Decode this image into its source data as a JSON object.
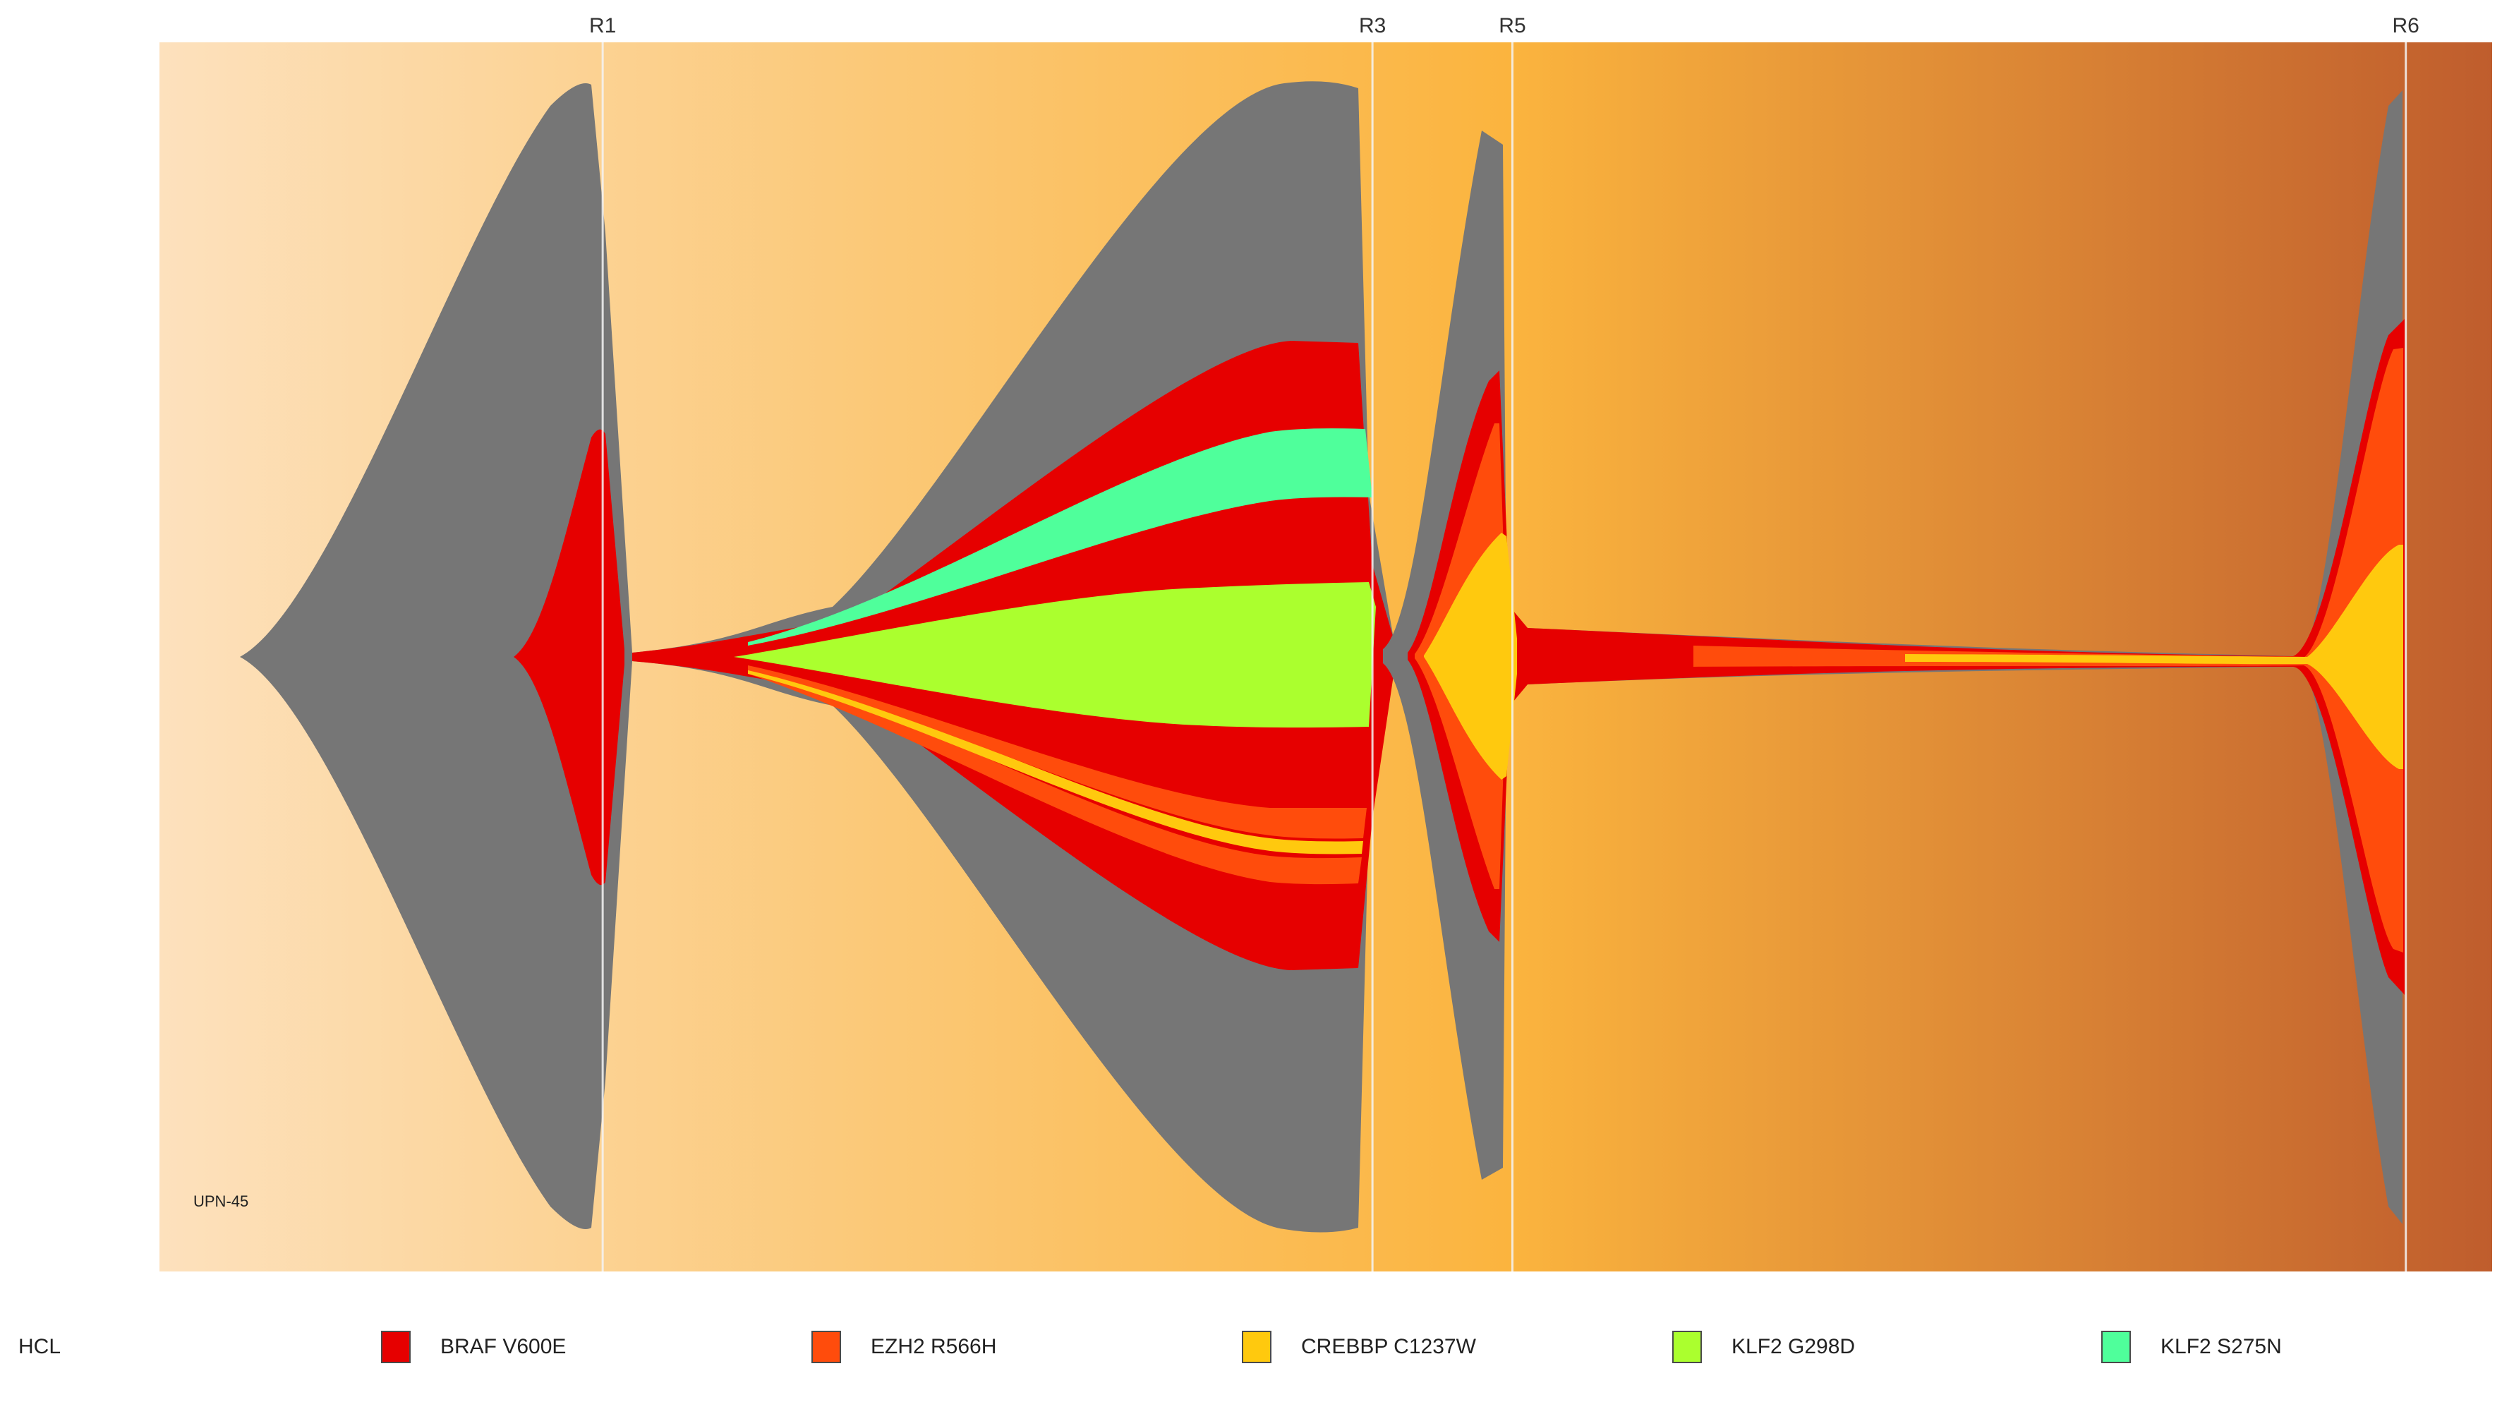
{
  "chart_data": {
    "type": "fishplot",
    "sample_label": "UPN-45",
    "timepoints": [
      {
        "label": "R1",
        "t": 0.19
      },
      {
        "label": "R3",
        "t": 0.52
      },
      {
        "label": "R5",
        "t": 0.58
      },
      {
        "label": "R6",
        "t": 0.963
      }
    ],
    "background": {
      "from": "#fde1bd",
      "mid1": "#fbc979",
      "mid2": "#fbb43e",
      "to": "#bf5d2d"
    },
    "legend": {
      "title": "HCL",
      "items": [
        {
          "label": "BRAF V600E",
          "color": "#e60000"
        },
        {
          "label": "EZH2 R566H",
          "color": "#ff4c0c"
        },
        {
          "label": "CREBBP C1237W",
          "color": "#ffc90e"
        },
        {
          "label": "KLF2 G298D",
          "color": "#abff2e"
        },
        {
          "label": "KLF2 S275N",
          "color": "#4fff9b"
        }
      ]
    }
  }
}
